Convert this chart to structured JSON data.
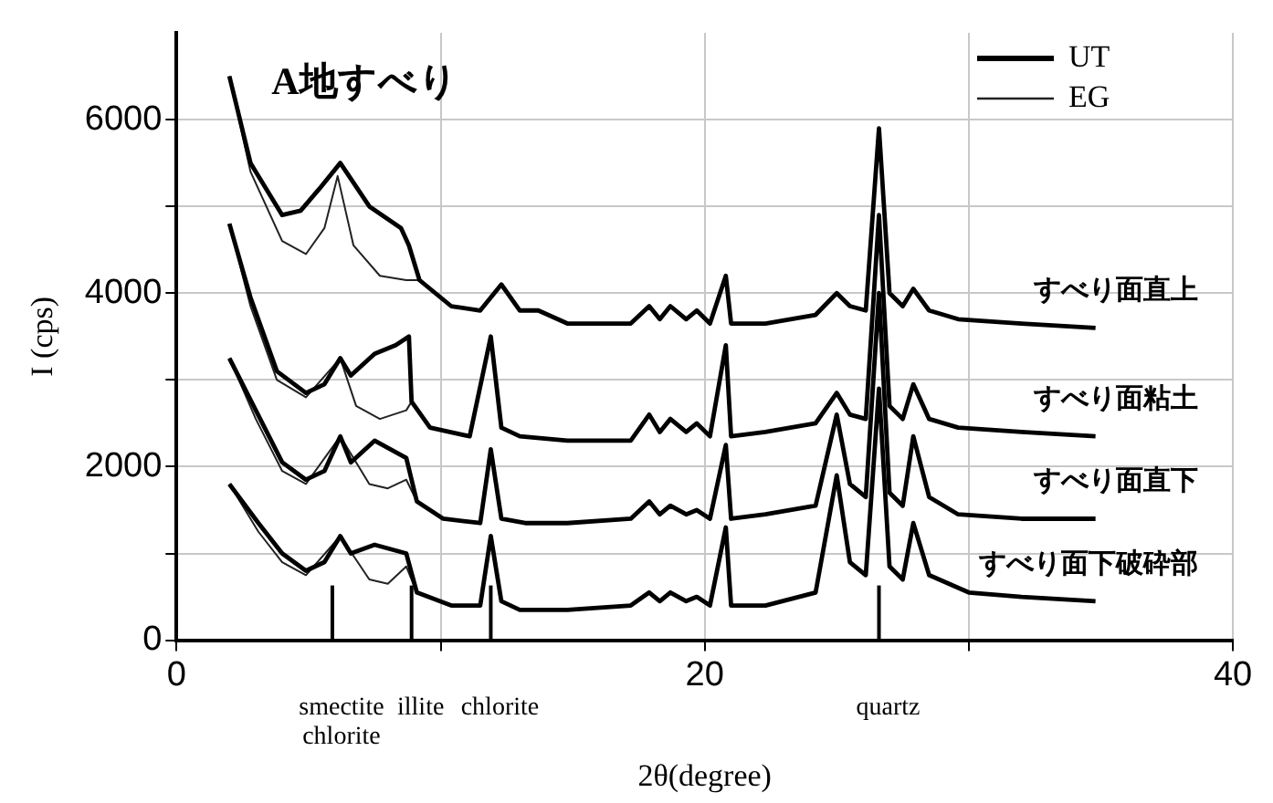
{
  "chart_data": {
    "type": "line",
    "title": "A地すべり",
    "xlabel": "2θ(degree)",
    "ylabel": "I (cps)",
    "xlim": [
      0,
      40
    ],
    "xticks": [
      0,
      {
        "value": 10,
        "label": null
      },
      20,
      {
        "value": 30,
        "label": null
      },
      40
    ],
    "ylim": [
      0,
      7000
    ],
    "yticks": [
      0,
      {
        "value": 1000,
        "label": null
      },
      2000,
      {
        "value": 3000,
        "label": null
      },
      4000,
      {
        "value": 5000,
        "label": null
      },
      6000
    ],
    "grid": true,
    "legend": "top right",
    "series": [
      {
        "name": "UT",
        "color": "#000000",
        "x": [
          2.0,
          2.8,
          4.0,
          4.7,
          5.4,
          6.2,
          7.3,
          8.5,
          8.8,
          9.2,
          10.4,
          11.5,
          12.3,
          13.0,
          13.7,
          14.8,
          17.2,
          17.9,
          18.3,
          18.7,
          19.3,
          19.7,
          20.2,
          20.8,
          21.0,
          22.3,
          24.2,
          25.0,
          25.5,
          26.1,
          26.6,
          27.0,
          27.5,
          27.9,
          28.5,
          29.6,
          32.0,
          34.8
        ],
        "values": [
          6500,
          5500,
          4900,
          4950,
          5200,
          5500,
          5000,
          4750,
          4550,
          4150,
          3850,
          3800,
          4100,
          3800,
          3800,
          3650,
          3650,
          3850,
          3700,
          3850,
          3700,
          3800,
          3650,
          4200,
          3650,
          3650,
          3750,
          4000,
          3850,
          3800,
          5900,
          4000,
          3850,
          4050,
          3800,
          3700,
          3650,
          3600
        ]
      },
      {
        "name": "EG",
        "color": "#222222",
        "x": [
          2.0,
          2.8,
          4.0,
          4.9,
          5.6,
          6.1,
          6.7,
          7.7,
          8.7,
          9.2
        ],
        "values": [
          6500,
          5400,
          4600,
          4450,
          4750,
          5350,
          4550,
          4200,
          4150,
          4150
        ]
      },
      {
        "color": "#000000",
        "x": [
          2.0,
          2.8,
          3.8,
          4.9,
          5.6,
          6.2,
          6.6,
          7.5,
          8.3,
          8.8,
          8.9,
          9.6,
          11.1,
          11.9,
          12.3,
          13.0,
          14.8,
          17.2,
          17.9,
          18.3,
          18.7,
          19.3,
          19.7,
          20.2,
          20.8,
          21.0,
          22.3,
          24.2,
          25.0,
          25.5,
          26.1,
          26.6,
          27.0,
          27.5,
          27.9,
          28.5,
          29.6,
          32.0,
          34.8
        ],
        "values": [
          4800,
          3950,
          3100,
          2850,
          2950,
          3250,
          3050,
          3300,
          3400,
          3500,
          2750,
          2450,
          2350,
          3500,
          2450,
          2350,
          2300,
          2300,
          2600,
          2400,
          2550,
          2400,
          2500,
          2350,
          3400,
          2350,
          2400,
          2500,
          2850,
          2600,
          2550,
          4900,
          2700,
          2550,
          2950,
          2550,
          2450,
          2400,
          2350
        ]
      },
      {
        "color": "#222222",
        "x": [
          2.0,
          2.8,
          3.8,
          4.9,
          6.2,
          6.8,
          7.7,
          8.7,
          8.9
        ],
        "values": [
          4800,
          3850,
          3000,
          2800,
          3250,
          2700,
          2550,
          2650,
          2750
        ]
      },
      {
        "color": "#000000",
        "x": [
          2.0,
          3.0,
          4.0,
          4.9,
          5.6,
          6.2,
          6.6,
          7.5,
          8.7,
          9.1,
          10.1,
          11.5,
          11.9,
          12.3,
          13.2,
          14.8,
          17.2,
          17.9,
          18.3,
          18.7,
          19.3,
          19.7,
          20.2,
          20.8,
          21.0,
          22.3,
          24.2,
          25.0,
          25.5,
          26.1,
          26.6,
          27.0,
          27.5,
          27.9,
          28.5,
          29.6,
          32.0,
          34.8
        ],
        "values": [
          3250,
          2650,
          2050,
          1850,
          1950,
          2350,
          2050,
          2300,
          2100,
          1600,
          1400,
          1350,
          2200,
          1400,
          1350,
          1350,
          1400,
          1600,
          1450,
          1550,
          1450,
          1500,
          1400,
          2250,
          1400,
          1450,
          1550,
          2600,
          1800,
          1650,
          4000,
          1700,
          1550,
          2350,
          1650,
          1450,
          1400,
          1400
        ]
      },
      {
        "color": "#222222",
        "x": [
          2.0,
          3.0,
          4.0,
          4.9,
          6.2,
          7.3,
          8.0,
          8.7,
          9.1
        ],
        "values": [
          3250,
          2550,
          1950,
          1800,
          2350,
          1800,
          1750,
          1850,
          1600
        ]
      },
      {
        "color": "#000000",
        "x": [
          2.0,
          3.1,
          4.0,
          4.9,
          5.6,
          6.2,
          6.6,
          7.5,
          8.7,
          9.1,
          10.4,
          11.5,
          11.9,
          12.3,
          13.0,
          14.8,
          17.2,
          17.9,
          18.3,
          18.7,
          19.3,
          19.7,
          20.2,
          20.8,
          21.0,
          22.3,
          24.2,
          25.0,
          25.5,
          26.1,
          26.6,
          27.0,
          27.5,
          27.9,
          28.5,
          30.0,
          32.0,
          34.8
        ],
        "values": [
          1800,
          1350,
          1000,
          800,
          900,
          1200,
          1000,
          1100,
          1000,
          550,
          400,
          400,
          1200,
          450,
          350,
          350,
          400,
          550,
          450,
          550,
          450,
          500,
          400,
          1300,
          400,
          400,
          550,
          1900,
          900,
          750,
          2900,
          850,
          700,
          1350,
          750,
          550,
          500,
          450
        ]
      },
      {
        "color": "#222222",
        "x": [
          2.0,
          3.1,
          4.0,
          4.9,
          6.2,
          7.3,
          8.0,
          8.7,
          9.1
        ],
        "values": [
          1800,
          1250,
          900,
          750,
          1200,
          700,
          650,
          850,
          550
        ]
      }
    ],
    "ref_lines": [
      {
        "axis": "x",
        "value": 5.9,
        "label": "smectite chlorite"
      },
      {
        "axis": "x",
        "value": 8.9,
        "label": "illite"
      },
      {
        "axis": "x",
        "value": 11.9,
        "label": "chlorite"
      },
      {
        "axis": "x",
        "value": 26.6,
        "label": "quartz"
      }
    ],
    "annotations": [
      "すべり面直上",
      "すべり面粘土",
      "すべり面直下",
      "すべり面下破砕部"
    ]
  }
}
